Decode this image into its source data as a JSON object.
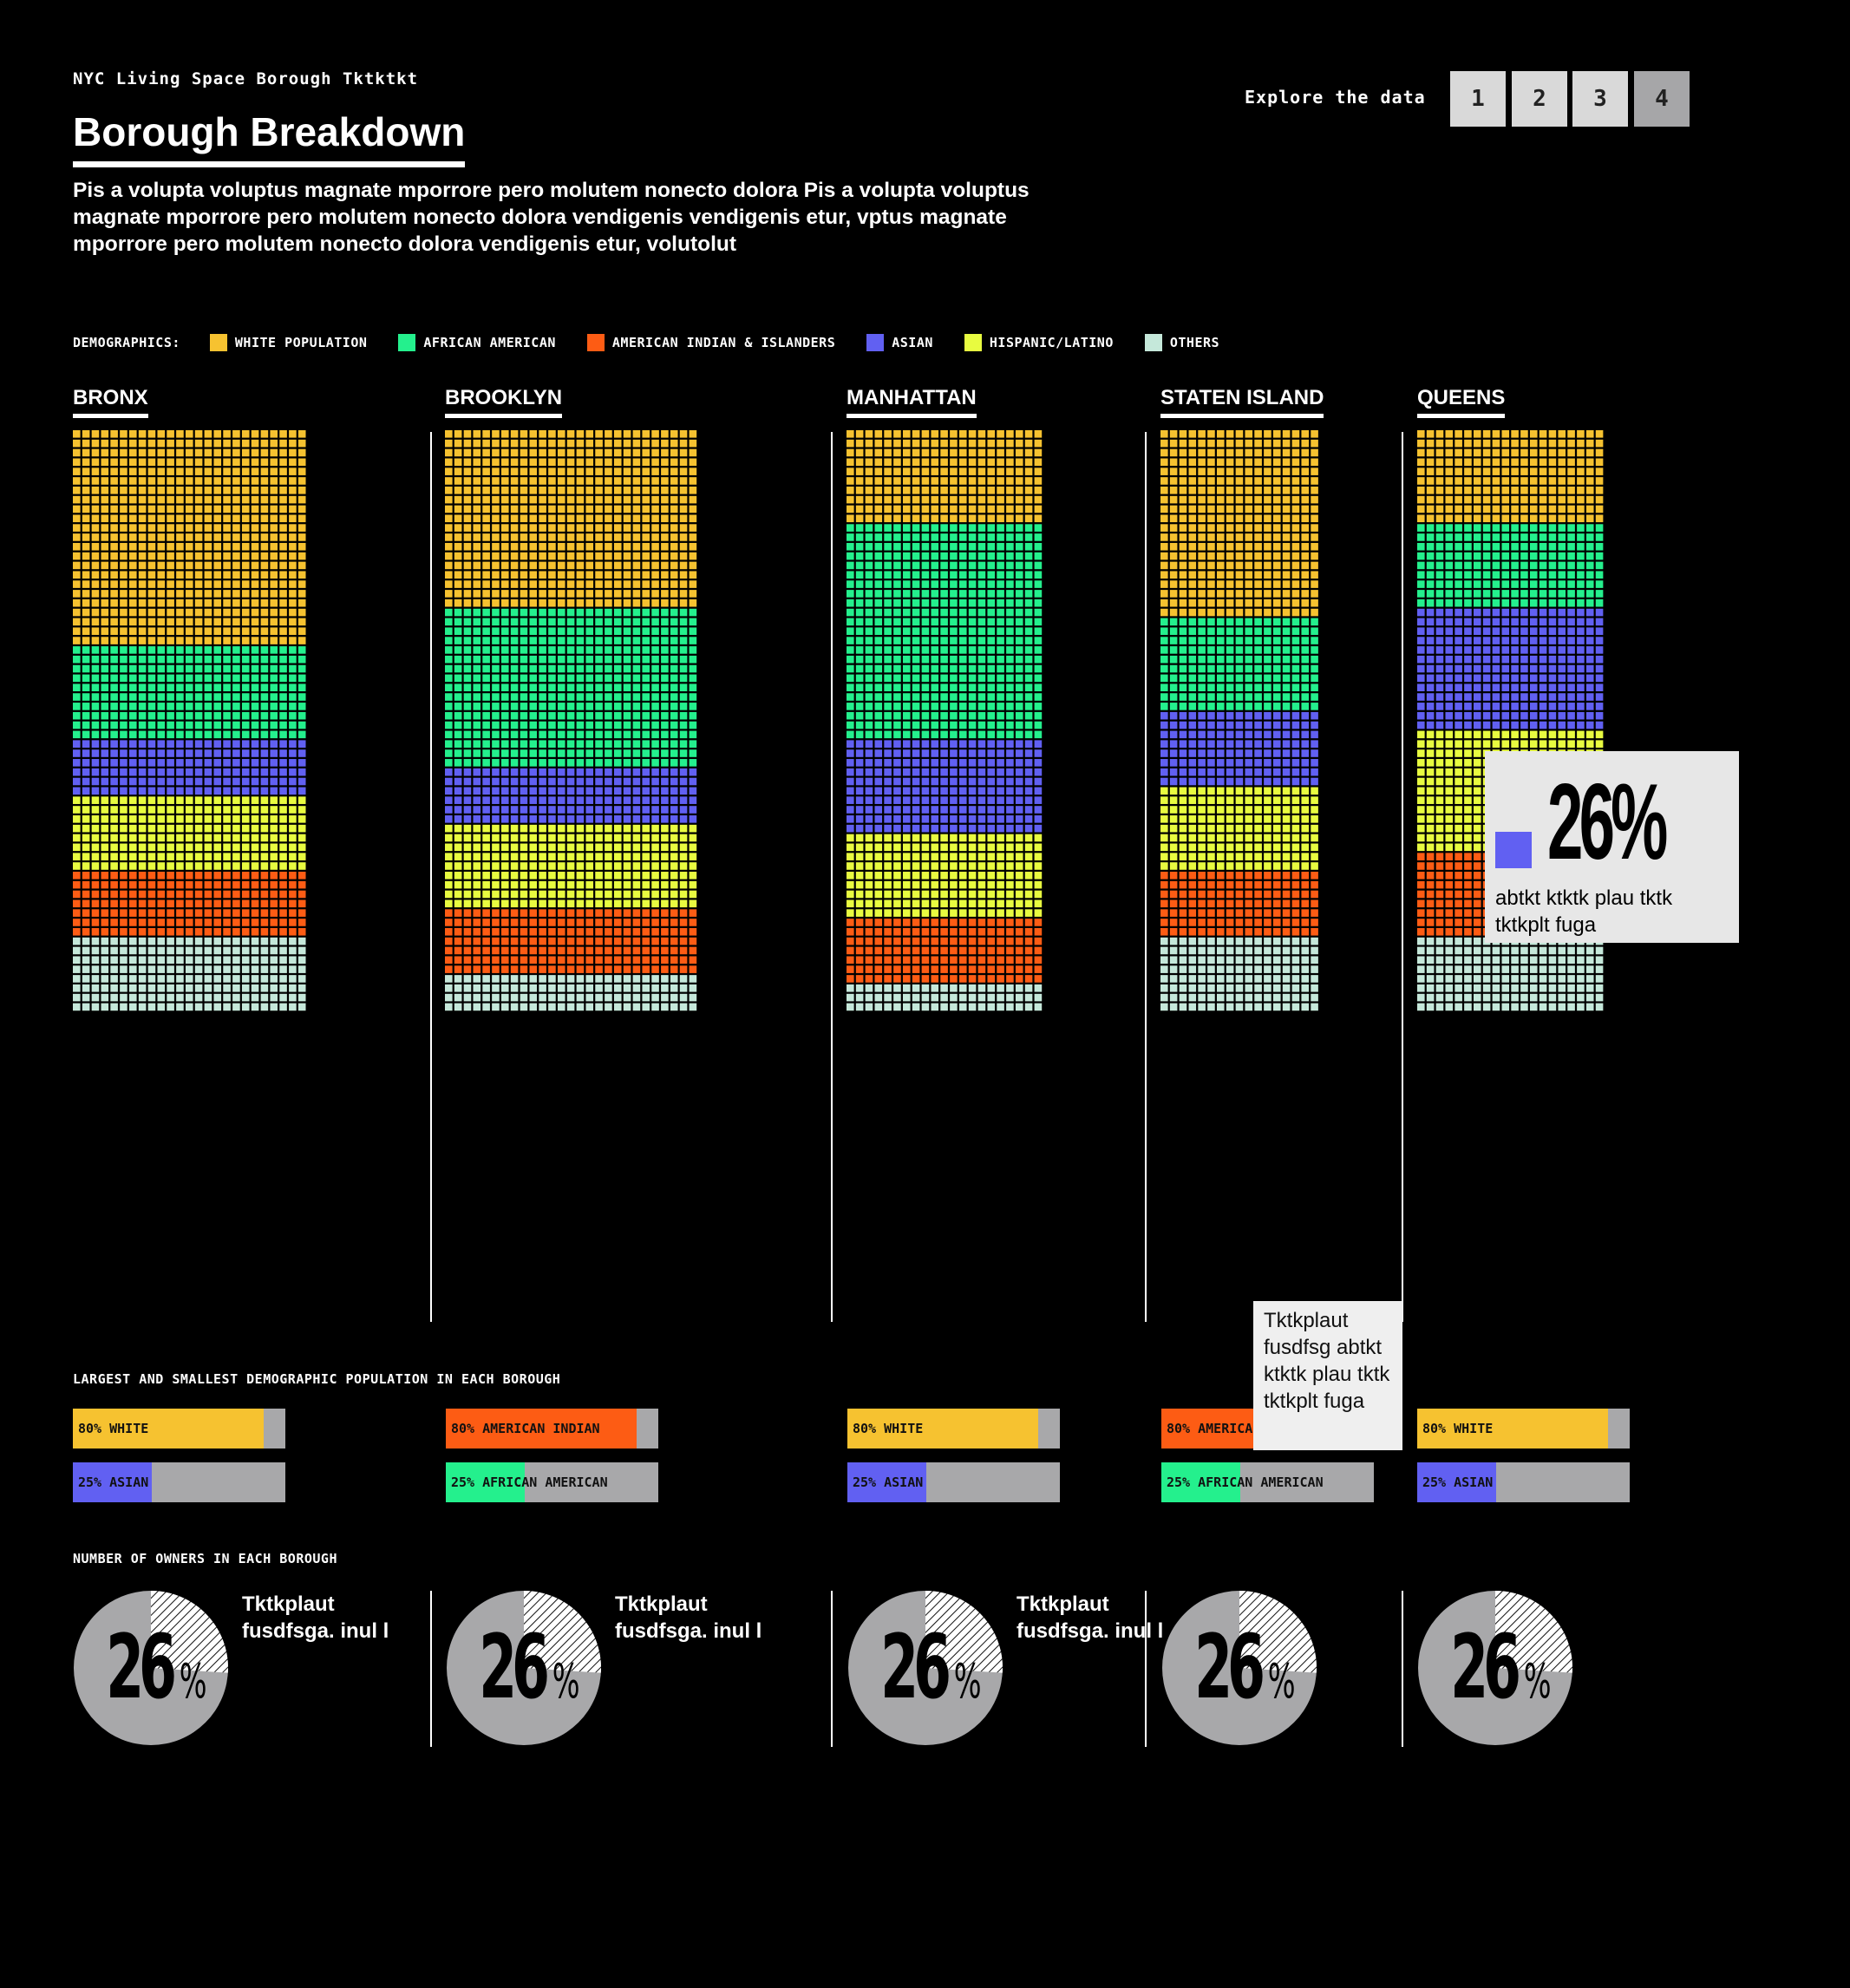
{
  "header": {
    "kicker": "NYC Living Space Borough Tktktkt",
    "title": "Borough Breakdown",
    "intro": "Pis a volupta voluptus magnate mporrore pero molutem nonecto dolora Pis a volupta voluptus magnate mporrore pero molutem nonecto dolora vendigenis vendigenis etur, vptus magnate mporrore pero molutem nonecto dolora vendigenis etur, volutolut",
    "explore_label": "Explore the data",
    "pages": [
      "1",
      "2",
      "3",
      "4"
    ],
    "active_page": "4"
  },
  "legend": {
    "title": "DEMOGRAPHICS:",
    "items": [
      {
        "label": "WHITE POPULATION",
        "color": "#f6c230"
      },
      {
        "label": "AFRICAN AMERICAN",
        "color": "#24f08d"
      },
      {
        "label": "AMERICAN INDIAN & ISLANDERS",
        "color": "#fd5c14"
      },
      {
        "label": "ASIAN",
        "color": "#6160f2"
      },
      {
        "label": "HISPANIC/LATINO",
        "color": "#e8fb40"
      },
      {
        "label": "OTHERS",
        "color": "#c5e8da"
      }
    ]
  },
  "chart_data": {
    "type": "waffle",
    "category_order": [
      "White",
      "African American",
      "Asian",
      "Hispanic/Latino",
      "American Indian & Islanders",
      "Others"
    ],
    "category_colors": [
      "#f6c230",
      "#24f08d",
      "#6160f2",
      "#e8fb40",
      "#fd5c14",
      "#c5e8da"
    ],
    "boroughs": [
      {
        "name": "BRONX",
        "rows": [
          23,
          10,
          6,
          8,
          7,
          8
        ]
      },
      {
        "name": "BROOKLYN",
        "rows": [
          19,
          17,
          6,
          9,
          7,
          4
        ]
      },
      {
        "name": "MANHATTAN",
        "rows": [
          10,
          23,
          10,
          9,
          7,
          3
        ]
      },
      {
        "name": "STATEN ISLAND",
        "rows": [
          20,
          10,
          8,
          9,
          7,
          8
        ]
      },
      {
        "name": "QUEENS",
        "rows": [
          10,
          9,
          13,
          13,
          9,
          8
        ]
      }
    ]
  },
  "largest_smallest": {
    "title": "LARGEST AND SMALLEST DEMOGRAPHIC POPULATION IN EACH BOROUGH",
    "items": [
      {
        "largest": {
          "label": "80% WHITE",
          "value": 80,
          "color": "#f6c230"
        },
        "smallest": {
          "label": "25% ASIAN",
          "value": 25,
          "color": "#6160f2"
        }
      },
      {
        "largest": {
          "label": "80% AMERICAN INDIAN",
          "value": 80,
          "color": "#fd5c14"
        },
        "smallest": {
          "label": "25% AFRICAN AMERICAN",
          "value": 25,
          "color": "#24f08d"
        }
      },
      {
        "largest": {
          "label": "80% WHITE",
          "value": 80,
          "color": "#f6c230"
        },
        "smallest": {
          "label": "25% ASIAN",
          "value": 25,
          "color": "#6160f2"
        }
      },
      {
        "largest": {
          "label": "80% AMERICAN INDIAN",
          "value": 80,
          "color": "#fd5c14"
        },
        "smallest": {
          "label": "25% AFRICAN AMERICAN",
          "value": 25,
          "color": "#24f08d"
        }
      },
      {
        "largest": {
          "label": "80% WHITE",
          "value": 80,
          "color": "#f6c230"
        },
        "smallest": {
          "label": "25% ASIAN",
          "value": 25,
          "color": "#6160f2"
        }
      }
    ]
  },
  "owners": {
    "title": "NUMBER OF OWNERS IN EACH BOROUGH",
    "items": [
      {
        "value": "26",
        "sign": "%",
        "note": "Tktkplaut fusdfsga. inul l"
      },
      {
        "value": "26",
        "sign": "%",
        "note": "Tktkplaut fusdfsga. inul l"
      },
      {
        "value": "26",
        "sign": "%",
        "note": "Tktkplaut fusdfsga. inul l"
      },
      {
        "value": "26",
        "sign": "%",
        "note": ""
      },
      {
        "value": "26",
        "sign": "%",
        "note": ""
      }
    ]
  },
  "tooltips": {
    "big": {
      "value": "26%",
      "text": "abtkt ktktk plau tktk tktkplt fuga",
      "color": "#6160f2"
    },
    "small": {
      "text": "Tktkplaut fusdfsg abtkt ktktk plau tktk tktkplt fuga"
    }
  }
}
